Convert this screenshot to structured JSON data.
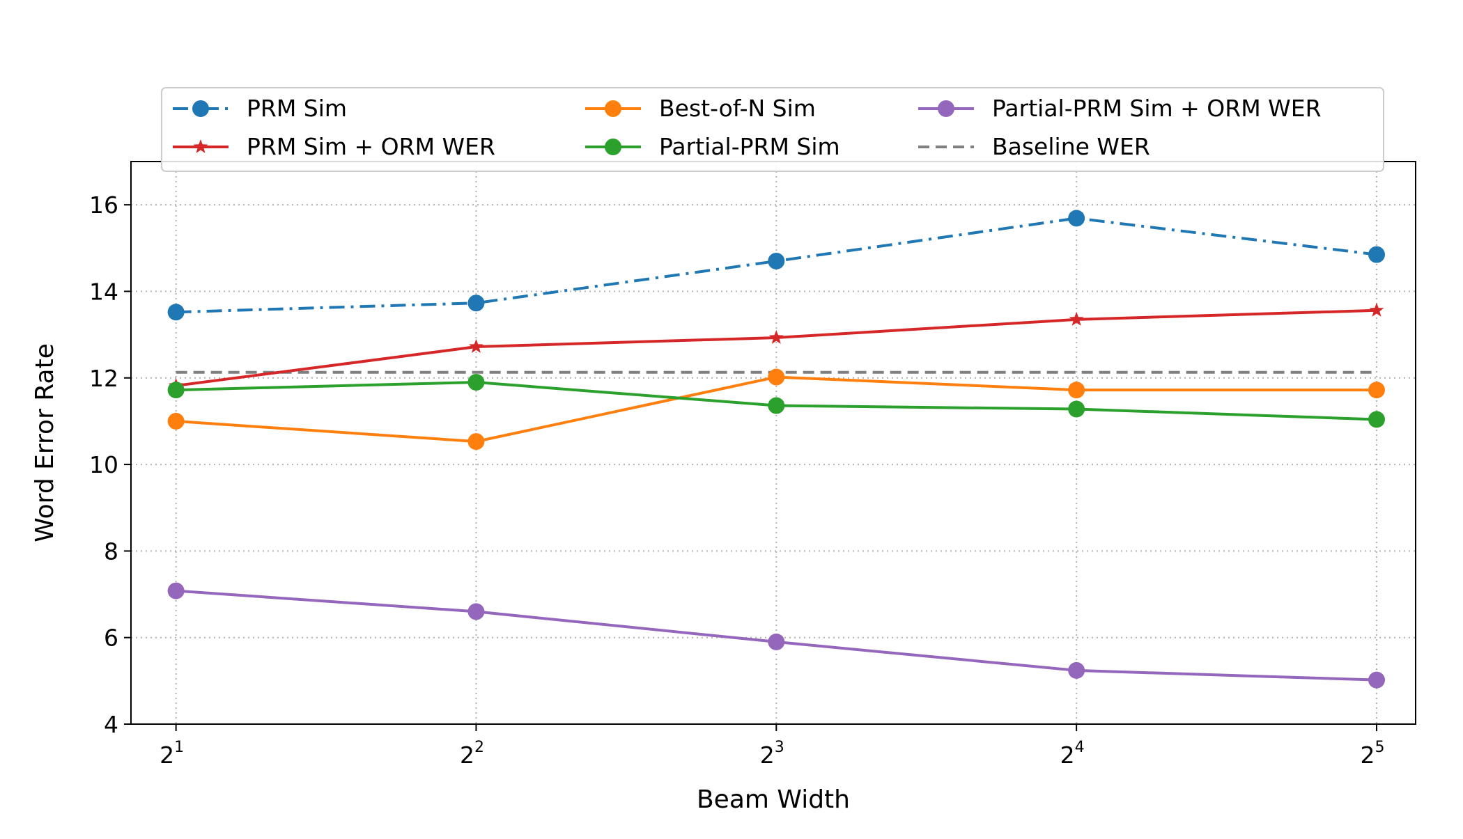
{
  "chart_data": {
    "type": "line",
    "xlabel": "Beam Width",
    "ylabel": "Word Error Rate",
    "x": [
      1,
      2,
      3,
      4,
      5
    ],
    "x_tick_labels": [
      {
        "base": "2",
        "exp": "1"
      },
      {
        "base": "2",
        "exp": "2"
      },
      {
        "base": "2",
        "exp": "3"
      },
      {
        "base": "2",
        "exp": "4"
      },
      {
        "base": "2",
        "exp": "5"
      }
    ],
    "x_scale": "log2",
    "xlim": [
      0.85,
      5.13
    ],
    "ylim": [
      4,
      17
    ],
    "y_ticks": [
      "4",
      "6",
      "8",
      "10",
      "12",
      "14",
      "16"
    ],
    "grid": true,
    "legend_placement": "top-center",
    "series": [
      {
        "name": "PRM Sim",
        "color": "#1f77b4",
        "linestyle": "dashdot",
        "marker": "circle",
        "values": [
          13.52,
          13.73,
          14.7,
          15.69,
          14.85
        ]
      },
      {
        "name": "PRM Sim + ORM WER",
        "color": "#d62728",
        "linestyle": "solid",
        "marker": "star",
        "values": [
          11.82,
          12.72,
          12.93,
          13.35,
          13.56
        ]
      },
      {
        "name": "Best-of-N Sim",
        "color": "#ff7f0e",
        "linestyle": "solid",
        "marker": "circle",
        "values": [
          11.0,
          10.53,
          12.02,
          11.72,
          11.72
        ]
      },
      {
        "name": "Partial-PRM Sim",
        "color": "#2ca02c",
        "linestyle": "solid",
        "marker": "circle",
        "values": [
          11.72,
          11.9,
          11.36,
          11.28,
          11.04
        ]
      },
      {
        "name": "Partial-PRM Sim + ORM WER",
        "color": "#9467bd",
        "linestyle": "solid",
        "marker": "circle",
        "values": [
          7.08,
          6.6,
          5.9,
          5.24,
          5.02
        ]
      },
      {
        "name": "Baseline WER",
        "color": "#7f7f7f",
        "linestyle": "dashed",
        "marker": "none",
        "values": [
          12.13,
          12.13,
          12.13,
          12.13,
          12.13
        ]
      }
    ]
  }
}
